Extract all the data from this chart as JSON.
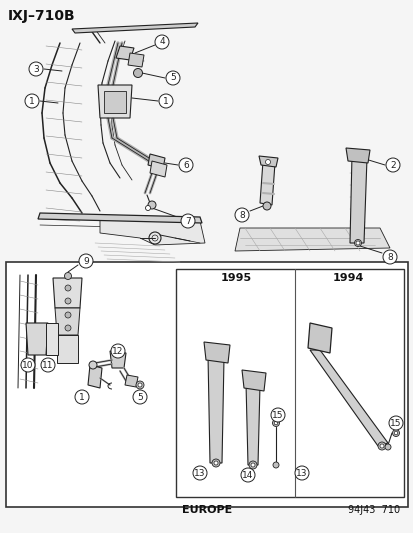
{
  "title": "IXJ–710B",
  "background_color": "#f5f5f5",
  "border_color": "#444444",
  "text_color": "#111111",
  "footer_left": "EUROPE",
  "footer_right": "94J43  710",
  "year_1995": "1995",
  "year_1994": "1994",
  "figsize": [
    4.14,
    5.33
  ],
  "dpi": 100
}
